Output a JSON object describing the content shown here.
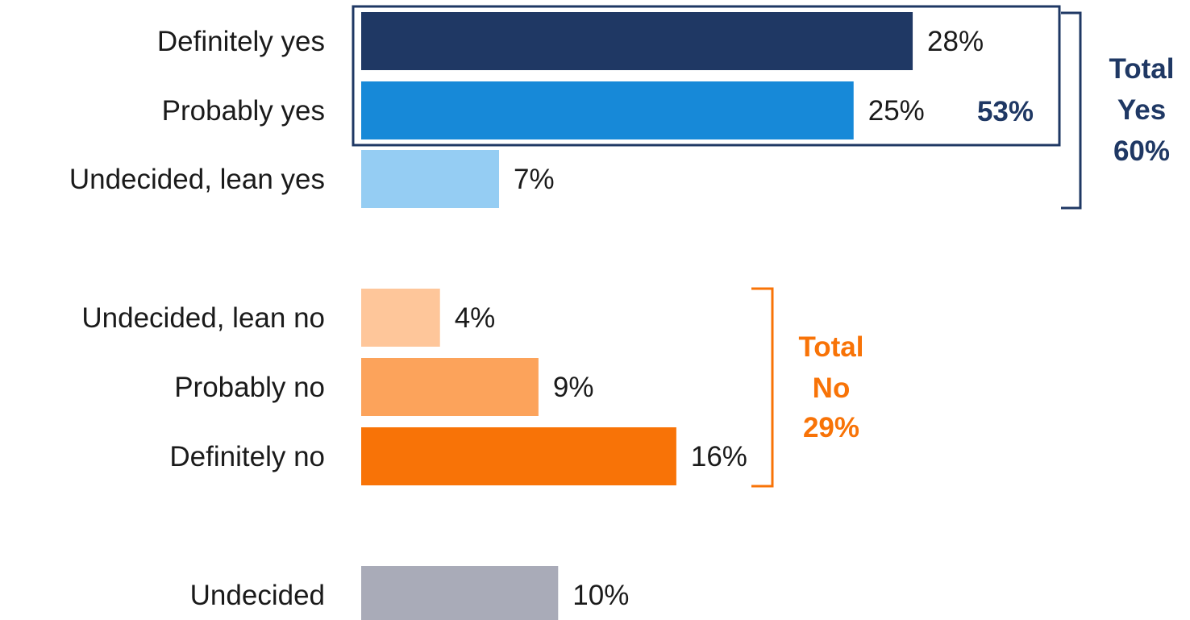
{
  "chart_data": {
    "type": "bar",
    "orientation": "horizontal",
    "categories": [
      "Definitely yes",
      "Probably yes",
      "Undecided, lean yes",
      "Undecided, lean no",
      "Probably no",
      "Definitely no",
      "Undecided"
    ],
    "values": [
      28,
      25,
      7,
      4,
      9,
      16,
      10
    ],
    "value_labels": [
      "28%",
      "25%",
      "7%",
      "4%",
      "9%",
      "16%",
      "10%"
    ],
    "colors": [
      "#1f3864",
      "#1789d8",
      "#95cdf3",
      "#fec69a",
      "#fca35b",
      "#f87307",
      "#a9abb8"
    ],
    "xlim": [
      0,
      40
    ],
    "grid": false,
    "legend": "none",
    "annotations": {
      "strong_yes": {
        "label": "53%",
        "color": "#1f3864",
        "covers": [
          "Definitely yes",
          "Probably yes"
        ]
      },
      "total_yes": {
        "lines": [
          "Total",
          "Yes",
          "60%"
        ],
        "color": "#1f3864",
        "covers": [
          "Definitely yes",
          "Probably yes",
          "Undecided, lean yes"
        ]
      },
      "total_no": {
        "lines": [
          "Total",
          "No",
          "29%"
        ],
        "color": "#f87307",
        "covers": [
          "Undecided, lean no",
          "Probably no",
          "Definitely no"
        ]
      }
    }
  }
}
